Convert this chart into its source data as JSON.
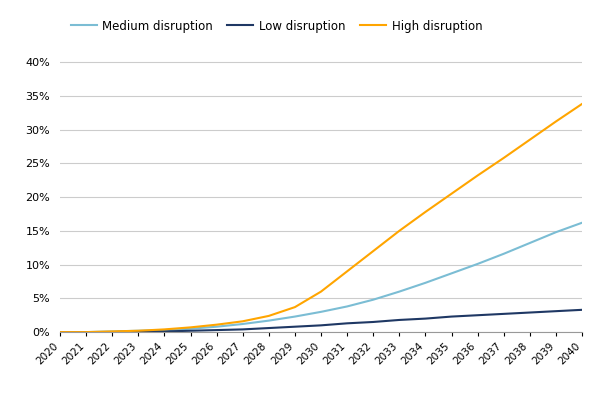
{
  "years": [
    2020,
    2021,
    2022,
    2023,
    2024,
    2025,
    2026,
    2027,
    2028,
    2029,
    2030,
    2031,
    2032,
    2033,
    2034,
    2035,
    2036,
    2037,
    2038,
    2039,
    2040
  ],
  "medium": [
    0.0,
    0.0,
    0.001,
    0.002,
    0.003,
    0.005,
    0.008,
    0.012,
    0.017,
    0.023,
    0.03,
    0.038,
    0.048,
    0.06,
    0.073,
    0.087,
    0.101,
    0.116,
    0.132,
    0.148,
    0.162
  ],
  "low": [
    0.0,
    0.0,
    0.0,
    0.001,
    0.001,
    0.002,
    0.003,
    0.004,
    0.006,
    0.008,
    0.01,
    0.013,
    0.015,
    0.018,
    0.02,
    0.023,
    0.025,
    0.027,
    0.029,
    0.031,
    0.033
  ],
  "high": [
    0.0,
    0.0,
    0.001,
    0.002,
    0.004,
    0.007,
    0.011,
    0.016,
    0.024,
    0.037,
    0.06,
    0.09,
    0.12,
    0.15,
    0.178,
    0.205,
    0.232,
    0.258,
    0.285,
    0.312,
    0.338
  ],
  "medium_color": "#7BBDD4",
  "low_color": "#1F3864",
  "high_color": "#FFA500",
  "legend_labels": [
    "Medium disruption",
    "Low disruption",
    "High disruption"
  ],
  "ylim": [
    0.0,
    0.42
  ],
  "yticks": [
    0.0,
    0.05,
    0.1,
    0.15,
    0.2,
    0.25,
    0.3,
    0.35,
    0.4
  ],
  "background_color": "#ffffff",
  "grid_color": "#cccccc",
  "linewidth": 1.5
}
